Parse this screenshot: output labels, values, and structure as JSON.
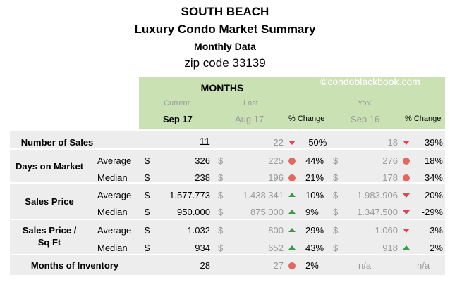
{
  "title": {
    "line1": "SOUTH BEACH",
    "line2": "Luxury Condo Market Summary",
    "line3": "Monthly Data",
    "line4": "zip code 33139"
  },
  "header": {
    "months": "MONTHS",
    "watermark": "©condoblackbook.com",
    "current_label": "Current",
    "current_period": "Sep 17",
    "last_label": "Last",
    "last_period": "Aug 17",
    "last_change": "% Change",
    "yoy_label": "YoY",
    "yoy_period": "Sep 16",
    "yoy_change": "% Change"
  },
  "labels": {
    "sales": "Number of Sales",
    "dom": "Days on Market",
    "price": "Sales Price",
    "sqft1": "Sales Price /",
    "sqft2": "Sq Ft",
    "inventory": "Months of Inventory",
    "average": "Average",
    "median": "Median",
    "dollar": "$"
  },
  "rows": {
    "sales": {
      "current": "11",
      "last": "22",
      "last_indicator": "down",
      "last_change": "-50%",
      "yoy": "18",
      "yoy_indicator": "down",
      "yoy_change": "-39%"
    },
    "dom_avg": {
      "current": "326",
      "last": "225",
      "last_indicator": "circle",
      "last_change": "44%",
      "yoy": "276",
      "yoy_indicator": "circle",
      "yoy_change": "18%"
    },
    "dom_med": {
      "current": "238",
      "last": "196",
      "last_indicator": "circle",
      "last_change": "21%",
      "yoy": "178",
      "yoy_indicator": "circle",
      "yoy_change": "34%"
    },
    "price_avg": {
      "current": "1.577.773",
      "last": "1.438.341",
      "last_indicator": "up",
      "last_change": "10%",
      "yoy": "1.983.906",
      "yoy_indicator": "down",
      "yoy_change": "-20%"
    },
    "price_med": {
      "current": "950.000",
      "last": "875.000",
      "last_indicator": "up",
      "last_change": "9%",
      "yoy": "1.347.500",
      "yoy_indicator": "down",
      "yoy_change": "-29%"
    },
    "sqft_avg": {
      "current": "1.032",
      "last": "800",
      "last_indicator": "up",
      "last_change": "29%",
      "yoy": "1.060",
      "yoy_indicator": "down",
      "yoy_change": "-3%"
    },
    "sqft_med": {
      "current": "934",
      "last": "652",
      "last_indicator": "up",
      "last_change": "43%",
      "yoy": "918",
      "yoy_indicator": "up",
      "yoy_change": "2%"
    },
    "inventory": {
      "current": "28",
      "last": "27",
      "last_indicator": "circle",
      "last_change": "2%",
      "yoy": "n/a",
      "yoy_change": "n/a"
    }
  }
}
